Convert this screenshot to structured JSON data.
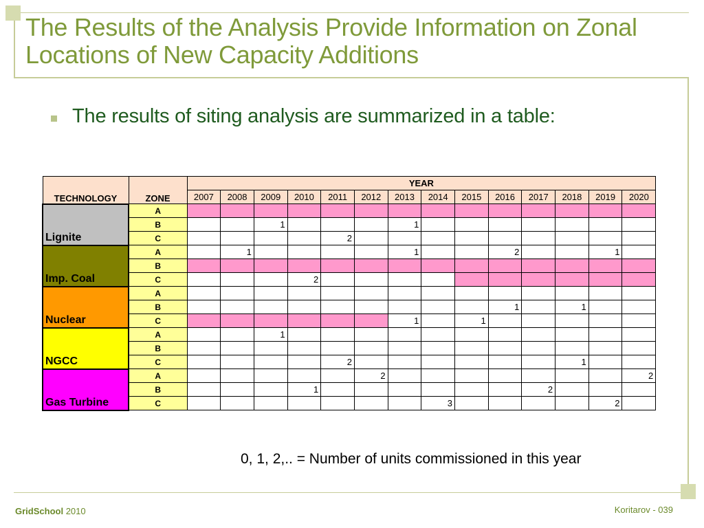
{
  "slide": {
    "title": "The Results of the Analysis Provide Information on Zonal Locations of New Capacity Additions",
    "bullet": "The results of siting analysis are summarized in a table:",
    "note": "0, 1, 2,.. = Number of units commissioned in this year"
  },
  "table": {
    "tech_header": "TECHNOLOGY",
    "zone_header": "ZONE",
    "year_header": "YEAR",
    "years": [
      "2007",
      "2008",
      "2009",
      "2010",
      "2011",
      "2012",
      "2013",
      "2014",
      "2015",
      "2016",
      "2017",
      "2018",
      "2019",
      "2020"
    ],
    "groups": [
      {
        "name": "Lignite",
        "color": "#c0c0c0",
        "rows": [
          {
            "zone": "A",
            "cells": [
              "",
              "",
              "",
              "",
              "",
              "",
              "",
              "",
              "",
              "",
              "",
              "",
              "",
              ""
            ],
            "pink": [
              0,
              1,
              2,
              3,
              4,
              5,
              6,
              7,
              8,
              9,
              10,
              11,
              12,
              13
            ]
          },
          {
            "zone": "B",
            "cells": [
              "",
              "",
              "1",
              "",
              "",
              "",
              "1",
              "",
              "",
              "",
              "",
              "",
              "",
              ""
            ],
            "pink": []
          },
          {
            "zone": "C",
            "cells": [
              "",
              "",
              "",
              "",
              "2",
              "",
              "",
              "",
              "",
              "",
              "",
              "",
              "",
              ""
            ],
            "pink": []
          }
        ]
      },
      {
        "name": "Imp. Coal",
        "color": "#808000",
        "rows": [
          {
            "zone": "A",
            "cells": [
              "",
              "1",
              "",
              "",
              "",
              "",
              "1",
              "",
              "",
              "2",
              "",
              "",
              "1",
              ""
            ],
            "pink": []
          },
          {
            "zone": "B",
            "cells": [
              "",
              "",
              "",
              "",
              "",
              "",
              "",
              "",
              "",
              "",
              "",
              "",
              "",
              ""
            ],
            "pink": [
              0,
              1,
              2,
              3,
              4,
              5,
              6,
              7,
              8,
              9,
              10,
              11,
              12,
              13
            ]
          },
          {
            "zone": "C",
            "cells": [
              "",
              "",
              "",
              "2",
              "",
              "",
              "",
              "",
              "",
              "",
              "",
              "",
              "",
              ""
            ],
            "pink": [
              8,
              9,
              10,
              11,
              12,
              13
            ]
          }
        ]
      },
      {
        "name": "Nuclear",
        "color": "#ff9900",
        "rows": [
          {
            "zone": "A",
            "cells": [
              "",
              "",
              "",
              "",
              "",
              "",
              "",
              "",
              "",
              "",
              "",
              "",
              "",
              ""
            ],
            "pink": []
          },
          {
            "zone": "B",
            "cells": [
              "",
              "",
              "",
              "",
              "",
              "",
              "",
              "",
              "",
              "1",
              "",
              "1",
              "",
              ""
            ],
            "pink": []
          },
          {
            "zone": "C",
            "cells": [
              "",
              "",
              "",
              "",
              "",
              "",
              "1",
              "",
              "1",
              "",
              "",
              "",
              "",
              ""
            ],
            "pink": [
              0,
              1,
              2,
              3,
              4,
              5
            ]
          }
        ]
      },
      {
        "name": "NGCC",
        "color": "#ffff00",
        "rows": [
          {
            "zone": "A",
            "cells": [
              "",
              "",
              "1",
              "",
              "",
              "",
              "",
              "",
              "",
              "",
              "",
              "",
              "",
              ""
            ],
            "pink": []
          },
          {
            "zone": "B",
            "cells": [
              "",
              "",
              "",
              "",
              "",
              "",
              "",
              "",
              "",
              "",
              "",
              "",
              "",
              ""
            ],
            "pink": []
          },
          {
            "zone": "C",
            "cells": [
              "",
              "",
              "",
              "",
              "2",
              "",
              "",
              "",
              "",
              "",
              "",
              "1",
              "",
              ""
            ],
            "pink": []
          }
        ]
      },
      {
        "name": "Gas Turbine",
        "color": "#ff00ff",
        "rows": [
          {
            "zone": "A",
            "cells": [
              "",
              "",
              "",
              "",
              "",
              "2",
              "",
              "",
              "",
              "",
              "",
              "",
              "",
              "2"
            ],
            "pink": []
          },
          {
            "zone": "B",
            "cells": [
              "",
              "",
              "",
              "1",
              "",
              "",
              "",
              "",
              "",
              "",
              "2",
              "",
              "",
              ""
            ],
            "pink": []
          },
          {
            "zone": "C",
            "cells": [
              "",
              "",
              "",
              "",
              "",
              "",
              "",
              "3",
              "",
              "",
              "",
              "",
              "2",
              ""
            ],
            "pink": []
          }
        ]
      }
    ]
  },
  "footer": {
    "brand": "GridSchool",
    "year": "2010",
    "right": "Koritarov  - 039"
  },
  "colors": {
    "title": "#7f9a3a",
    "bullet_text": "#1f5b1f",
    "pink": "#ff99cc",
    "zone_fill": "#ffff99",
    "year_fill": "#fde0cc"
  }
}
